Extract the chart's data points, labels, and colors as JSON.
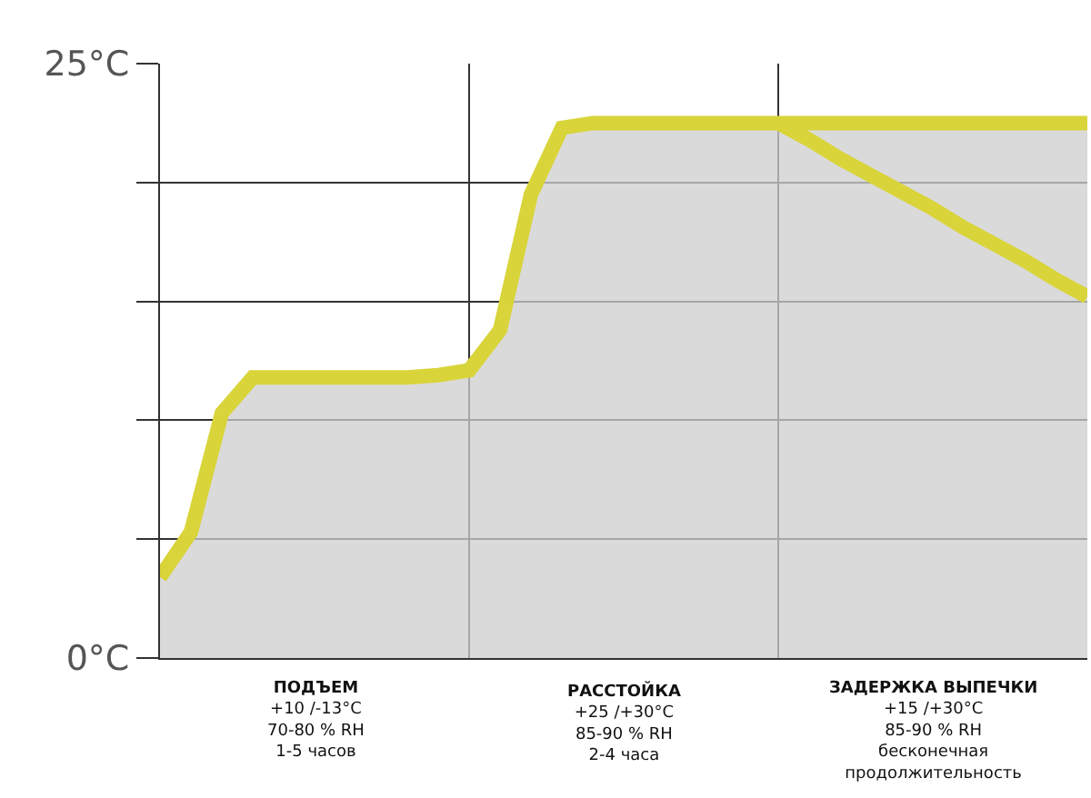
{
  "chart_data": {
    "type": "area",
    "categories": [
      null,
      null,
      null,
      null,
      null,
      null,
      null,
      null,
      null,
      null,
      null,
      null,
      null,
      null,
      null,
      null,
      null,
      null,
      null,
      null,
      null,
      null,
      null,
      null,
      null,
      null,
      null,
      null,
      null,
      null,
      null
    ],
    "series": [
      {
        "color": "#d9d43a",
        "values": [
          3.4,
          5.3,
          10.3,
          11.8,
          11.8,
          11.8,
          11.8,
          11.8,
          11.8,
          11.9,
          12.1,
          13.8,
          19.5,
          22.3,
          22.5,
          22.5,
          22.5,
          22.5,
          22.5,
          22.5,
          22.5,
          22.5,
          22.5,
          22.5,
          22.5,
          22.5,
          22.5,
          22.5,
          22.5,
          22.5,
          22.5
        ]
      },
      {
        "type": "line",
        "color": "#d9d43a",
        "values": [
          null,
          null,
          null,
          null,
          null,
          null,
          null,
          null,
          null,
          null,
          null,
          null,
          null,
          null,
          null,
          null,
          null,
          null,
          null,
          null,
          22.5,
          21.8,
          21.0,
          20.3,
          19.6,
          18.9,
          18.1,
          17.4,
          16.7,
          15.9,
          15.2
        ]
      }
    ],
    "ylim": [
      0,
      25
    ],
    "yticks": [
      {
        "value": 0,
        "label": "0°C"
      },
      {
        "value": 5,
        "label": null
      },
      {
        "value": 10,
        "label": null
      },
      {
        "value": 15,
        "label": null
      },
      {
        "value": 20,
        "label": null
      },
      {
        "value": 25,
        "label": "25°C"
      }
    ],
    "grid": "y",
    "marker": "none",
    "line_style": "solid",
    "annotations": [
      "ПОДЪЕМ\n+10 /-13°C\n70-80 % RH\n1-5 часов",
      "РАССТОЙКА\n+25 /+30°C\n85-90 % RH\n2-4 часа",
      "ЗАДЕРЖКА ВЫПЕЧКИ\n+15 /+30°C\n85-90 % RH\nбесконечная\nпродолжительность"
    ]
  }
}
